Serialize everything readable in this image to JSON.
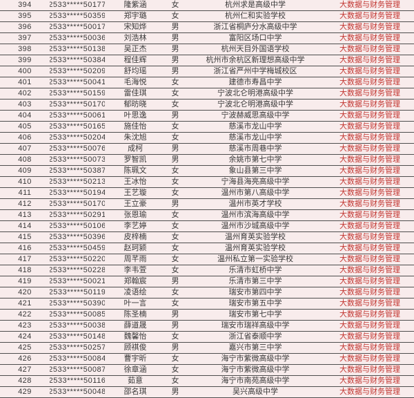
{
  "page": {
    "background_color": "#f8ecec",
    "rule_color": "#4d4d4d",
    "text_color": "#383838"
  },
  "table": {
    "major_label": "大数据与财务管理",
    "major_color": "#c23530",
    "rows": [
      [
        "394",
        "2533*****50177",
        "隆紫涵",
        "女",
        "杭州求是高级中学"
      ],
      [
        "395",
        "2533*****50359",
        "郑宇璐",
        "女",
        "杭州仁和实验学校"
      ],
      [
        "396",
        "2533*****50017",
        "宋知烨",
        "男",
        "浙江省桐庐分水高级中学"
      ],
      [
        "397",
        "2533*****50036",
        "刘浩林",
        "男",
        "富阳区场口中学"
      ],
      [
        "398",
        "2533*****50138",
        "吴正杰",
        "男",
        "杭州天目外国语学校"
      ],
      [
        "399",
        "2533*****50384",
        "程佳辉",
        "男",
        "杭州市余杭区新理想高级中学"
      ],
      [
        "400",
        "2533*****50209",
        "舒均瑶",
        "男",
        "浙江省严州中学梅城校区"
      ],
      [
        "401",
        "2533*****50041",
        "毛海悦",
        "女",
        "建德市寿昌中学"
      ],
      [
        "402",
        "2533*****50159",
        "雷佳琪",
        "女",
        "宁波北仑明港高级中学"
      ],
      [
        "403",
        "2533*****50170",
        "郁昉晓",
        "女",
        "宁波北仑明港高级中学"
      ],
      [
        "404",
        "2533*****50061",
        "叶思逸",
        "男",
        "宁波赫威思高级中学"
      ],
      [
        "405",
        "2533*****50165",
        "施佳怡",
        "女",
        "慈溪市龙山中学"
      ],
      [
        "406",
        "2533*****50204",
        "朱沈旭",
        "女",
        "慈溪市龙山中学"
      ],
      [
        "407",
        "2533*****50076",
        "成柯",
        "男",
        "慈溪市周巷中学"
      ],
      [
        "408",
        "2533*****50073",
        "罗智凯",
        "男",
        "余姚市第七中学"
      ],
      [
        "409",
        "2533*****50387",
        "陈珮文",
        "女",
        "象山县第三中学"
      ],
      [
        "410",
        "2533*****50213",
        "王冰怡",
        "女",
        "宁海县海亮高级中学"
      ],
      [
        "411",
        "2533*****50194",
        "王艺璇",
        "女",
        "温州市第八高级中学"
      ],
      [
        "412",
        "2533*****50170",
        "王立豪",
        "男",
        "温州市英才学校"
      ],
      [
        "413",
        "2533*****50291",
        "张恩瑜",
        "女",
        "温州市滨海高级中学"
      ],
      [
        "414",
        "2533*****50106",
        "李艺婷",
        "女",
        "温州市沙城高级中学"
      ],
      [
        "415",
        "2533*****50396",
        "皮梓楠",
        "女",
        "温州育英实验学校"
      ],
      [
        "416",
        "2533*****50459",
        "赵珂颍",
        "女",
        "温州育英实验学校"
      ],
      [
        "417",
        "2533*****50220",
        "周芊雨",
        "女",
        "温州私立第一实验学校"
      ],
      [
        "418",
        "2533*****50228",
        "李韦萱",
        "女",
        "乐清市虹桥中学"
      ],
      [
        "419",
        "2533*****50021",
        "郑翰宸",
        "男",
        "乐清市第三中学"
      ],
      [
        "420",
        "2533*****50119",
        "凌语绘",
        "女",
        "瑞安市第四中学"
      ],
      [
        "421",
        "2533*****50390",
        "叶一言",
        "女",
        "瑞安市第五中学"
      ],
      [
        "422",
        "2533*****50085",
        "陈圣楠",
        "男",
        "瑞安市第七中学"
      ],
      [
        "423",
        "2533*****50038",
        "薛道晟",
        "男",
        "瑞安市瑞祥高级中学"
      ],
      [
        "424",
        "2533*****50148",
        "魏馨怡",
        "女",
        "浙江省泰顺中学"
      ],
      [
        "425",
        "2533*****50257",
        "顾祺俊",
        "男",
        "嘉兴市第三中学"
      ],
      [
        "426",
        "2533*****50084",
        "曹宇昕",
        "女",
        "海宁市紫微高级中学"
      ],
      [
        "427",
        "2533*****50087",
        "徐章涵",
        "女",
        "海宁市紫微高级中学"
      ],
      [
        "428",
        "2533*****50116",
        "茹意",
        "女",
        "海宁市南苑高级中学"
      ],
      [
        "429",
        "2533*****50048",
        "邵名琪",
        "男",
        "吴兴高级中学"
      ]
    ]
  }
}
